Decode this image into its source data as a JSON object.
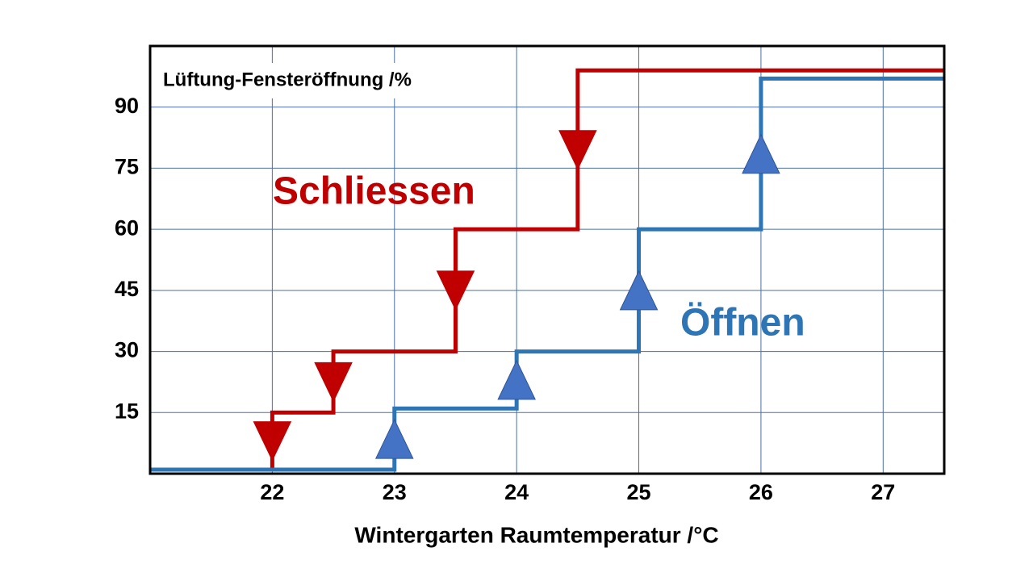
{
  "chart_data": {
    "type": "line",
    "title": "Lüftung-Fensteröffnung /%",
    "x_label": "Wintergarten Raumtemperatur  /°C",
    "xlim": [
      21,
      27.5
    ],
    "xticks": [
      22,
      23,
      24,
      25,
      26,
      27
    ],
    "ylim": [
      0,
      105
    ],
    "yticks": [
      15,
      30,
      45,
      60,
      75,
      90
    ],
    "grid": true,
    "series": [
      {
        "name": "Schliessen",
        "color": "#c00000",
        "direction": "down",
        "x": [
          22,
          22,
          22.5,
          22.5,
          23.5,
          23.5,
          24.5,
          24.5,
          27.5
        ],
        "values": [
          1,
          15,
          15,
          30,
          30,
          60,
          60,
          99,
          99
        ]
      },
      {
        "name": "Öffnen",
        "color": "#2e75b6",
        "direction": "up",
        "x": [
          21,
          23,
          23,
          24,
          24,
          25,
          25,
          26,
          26,
          27.5
        ],
        "values": [
          1,
          1,
          16,
          16,
          30,
          30,
          60,
          60,
          97,
          97
        ]
      }
    ]
  }
}
